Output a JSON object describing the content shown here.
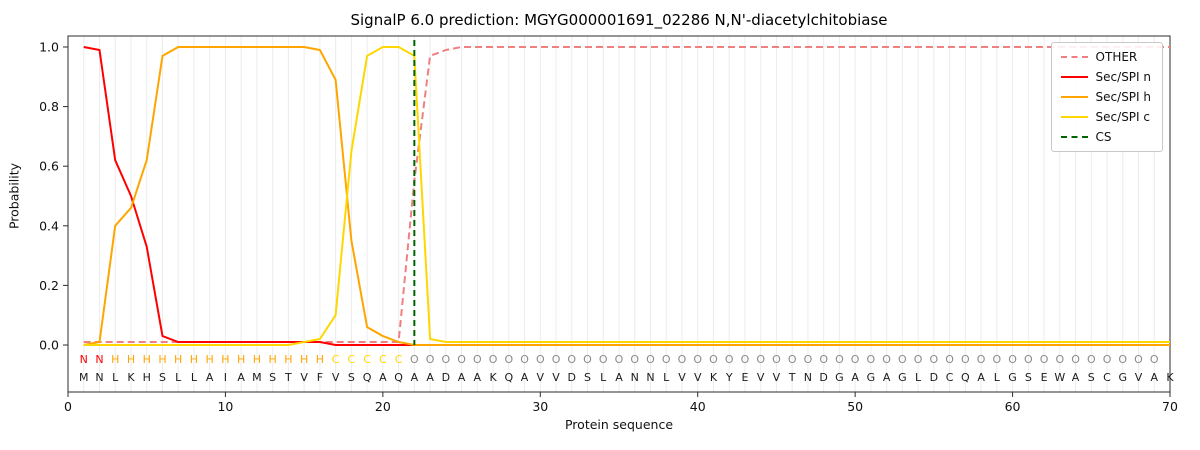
{
  "title": "SignalP 6.0 prediction: MGYG000001691_02286 N,N'-diacetylchitobiase",
  "axes": {
    "x_label": "Protein sequence",
    "y_label": "Probability"
  },
  "legend": {
    "items": [
      {
        "label": "OTHER",
        "color": "#f08080",
        "dash": true
      },
      {
        "label": "Sec/SPI n",
        "color": "#ff0000",
        "dash": false
      },
      {
        "label": "Sec/SPI h",
        "color": "#ffa500",
        "dash": false
      },
      {
        "label": "Sec/SPI c",
        "color": "#ffd700",
        "dash": false
      },
      {
        "label": "CS",
        "color": "#006400",
        "dash": true
      }
    ]
  },
  "chart_data": {
    "type": "line",
    "title": "SignalP 6.0 prediction: MGYG000001691_02286 N,N'-diacetylchitobiase",
    "xlabel": "Protein sequence",
    "ylabel": "Probability",
    "x_max": 70,
    "x_start": 1,
    "x_step": 1,
    "x_ticks": [
      0,
      10,
      20,
      30,
      40,
      50,
      60,
      70
    ],
    "y_ticks": [
      0.0,
      0.2,
      0.4,
      0.6,
      0.8,
      1.0
    ],
    "ylim": [
      0.0,
      1.0
    ],
    "grid": "vertical",
    "legend_position": "upper right",
    "cs_position": 22,
    "cs_color": "#006400",
    "series": [
      {
        "name": "OTHER",
        "color": "#f08080",
        "dash": true,
        "values": [
          0.01,
          0.01,
          0.01,
          0.01,
          0.01,
          0.01,
          0.01,
          0.01,
          0.01,
          0.01,
          0.01,
          0.01,
          0.01,
          0.01,
          0.01,
          0.01,
          0.01,
          0.01,
          0.01,
          0.01,
          0.01,
          0.55,
          0.97,
          0.99,
          1.0,
          1.0,
          1.0,
          1.0,
          1.0,
          1.0,
          1.0,
          1.0,
          1.0,
          1.0,
          1.0,
          1.0,
          1.0,
          1.0,
          1.0,
          1.0,
          1.0,
          1.0,
          1.0,
          1.0,
          1.0,
          1.0,
          1.0,
          1.0,
          1.0,
          1.0,
          1.0,
          1.0,
          1.0,
          1.0,
          1.0,
          1.0,
          1.0,
          1.0,
          1.0,
          1.0,
          1.0,
          1.0,
          1.0,
          1.0,
          1.0,
          1.0,
          1.0,
          1.0,
          1.0,
          1.0
        ]
      },
      {
        "name": "Sec/SPI n",
        "color": "#ff0000",
        "dash": false,
        "values": [
          1.0,
          0.99,
          0.62,
          0.5,
          0.33,
          0.03,
          0.01,
          0.01,
          0.01,
          0.01,
          0.01,
          0.01,
          0.01,
          0.01,
          0.01,
          0.01,
          0.0,
          0.0,
          0.0,
          0.0,
          0.0,
          0.0,
          0.0,
          0.0,
          0.0,
          0.0,
          0.0,
          0.0,
          0.0,
          0.0,
          0.0,
          0.0,
          0.0,
          0.0,
          0.0,
          0.0,
          0.0,
          0.0,
          0.0,
          0.0,
          0.0,
          0.0,
          0.0,
          0.0,
          0.0,
          0.0,
          0.0,
          0.0,
          0.0,
          0.0,
          0.0,
          0.0,
          0.0,
          0.0,
          0.0,
          0.0,
          0.0,
          0.0,
          0.0,
          0.0,
          0.0,
          0.0,
          0.0,
          0.0,
          0.0,
          0.0,
          0.0,
          0.0,
          0.0,
          0.0
        ]
      },
      {
        "name": "Sec/SPI h",
        "color": "#ffa500",
        "dash": false,
        "values": [
          0.0,
          0.01,
          0.4,
          0.46,
          0.62,
          0.97,
          1.0,
          1.0,
          1.0,
          1.0,
          1.0,
          1.0,
          1.0,
          1.0,
          1.0,
          0.99,
          0.89,
          0.35,
          0.06,
          0.03,
          0.01,
          0.0,
          0.0,
          0.0,
          0.0,
          0.0,
          0.0,
          0.0,
          0.0,
          0.0,
          0.0,
          0.0,
          0.0,
          0.0,
          0.0,
          0.0,
          0.0,
          0.0,
          0.0,
          0.0,
          0.0,
          0.0,
          0.0,
          0.0,
          0.0,
          0.0,
          0.0,
          0.0,
          0.0,
          0.0,
          0.0,
          0.0,
          0.0,
          0.0,
          0.0,
          0.0,
          0.0,
          0.0,
          0.0,
          0.0,
          0.0,
          0.0,
          0.0,
          0.0,
          0.0,
          0.0,
          0.0,
          0.0,
          0.0,
          0.0
        ]
      },
      {
        "name": "Sec/SPI c",
        "color": "#ffd700",
        "dash": false,
        "values": [
          0.0,
          0.0,
          0.0,
          0.0,
          0.0,
          0.0,
          0.0,
          0.0,
          0.0,
          0.0,
          0.0,
          0.0,
          0.0,
          0.0,
          0.01,
          0.02,
          0.1,
          0.65,
          0.97,
          1.0,
          1.0,
          0.97,
          0.02,
          0.01,
          0.01,
          0.01,
          0.01,
          0.01,
          0.01,
          0.01,
          0.01,
          0.01,
          0.01,
          0.01,
          0.01,
          0.01,
          0.01,
          0.01,
          0.01,
          0.01,
          0.01,
          0.01,
          0.01,
          0.01,
          0.01,
          0.01,
          0.01,
          0.01,
          0.01,
          0.01,
          0.01,
          0.01,
          0.01,
          0.01,
          0.01,
          0.01,
          0.01,
          0.01,
          0.01,
          0.01,
          0.01,
          0.01,
          0.01,
          0.01,
          0.01,
          0.01,
          0.01,
          0.01,
          0.01,
          0.01
        ]
      }
    ],
    "sequence": "MNLKHSLLAIAMSTVFVSQAQAADAAKQAVVDSLANNLVVKYEVVTNDGAGAGLDCQALGSEWASCGVAK",
    "region_labels": "NNHHHHHHHHHHHHHHCCCCCOOOOOOOOOOOOOOOOOOOOOOOOOOOOOOOOOOOOOOOOOOOOOOOO",
    "region_colors": {
      "N": "#ff0000",
      "H": "#ffa500",
      "C": "#ffd700",
      "O": "#8a8a8a"
    },
    "sequence_color": "#1a1a1a"
  }
}
